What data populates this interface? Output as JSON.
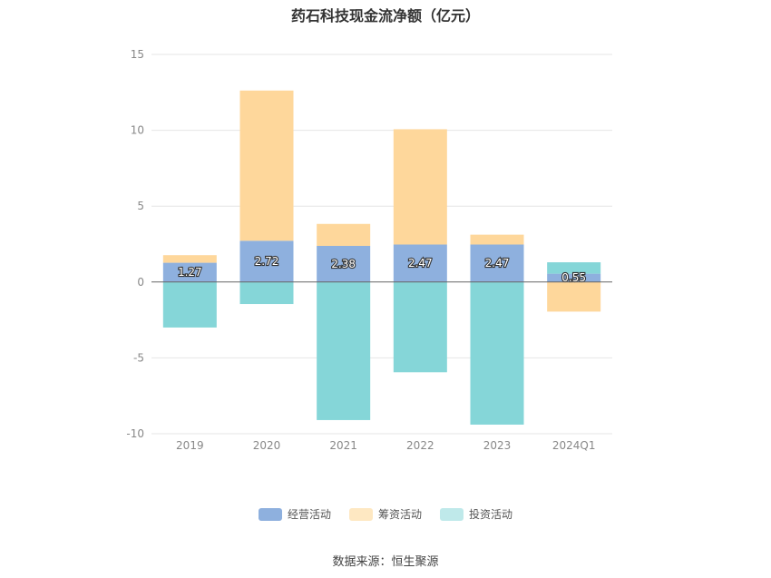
{
  "chart_data": {
    "type": "bar",
    "stacked": true,
    "title": "药石科技现金流净额（亿元）",
    "categories": [
      "2019",
      "2020",
      "2021",
      "2022",
      "2023",
      "2024Q1"
    ],
    "ylim": [
      -10,
      15
    ],
    "yticks": [
      15,
      10,
      5,
      0,
      -5,
      -10
    ],
    "grid": true,
    "legend_position": "bottom",
    "series": [
      {
        "name": "经营活动",
        "color": "#8eb0de",
        "values": [
          1.27,
          2.72,
          2.38,
          2.47,
          2.47,
          0.55
        ],
        "show_labels": true
      },
      {
        "name": "筹资活动",
        "color": "#fed79b",
        "values": [
          0.5,
          9.9,
          1.45,
          7.6,
          0.65,
          -1.95
        ],
        "show_labels": false
      },
      {
        "name": "投资活动",
        "color": "#85d6d8",
        "values": [
          -3.0,
          -1.45,
          -9.1,
          -5.95,
          -9.4,
          0.75
        ],
        "show_labels": false
      }
    ]
  },
  "source_text": "数据来源：恒生聚源"
}
